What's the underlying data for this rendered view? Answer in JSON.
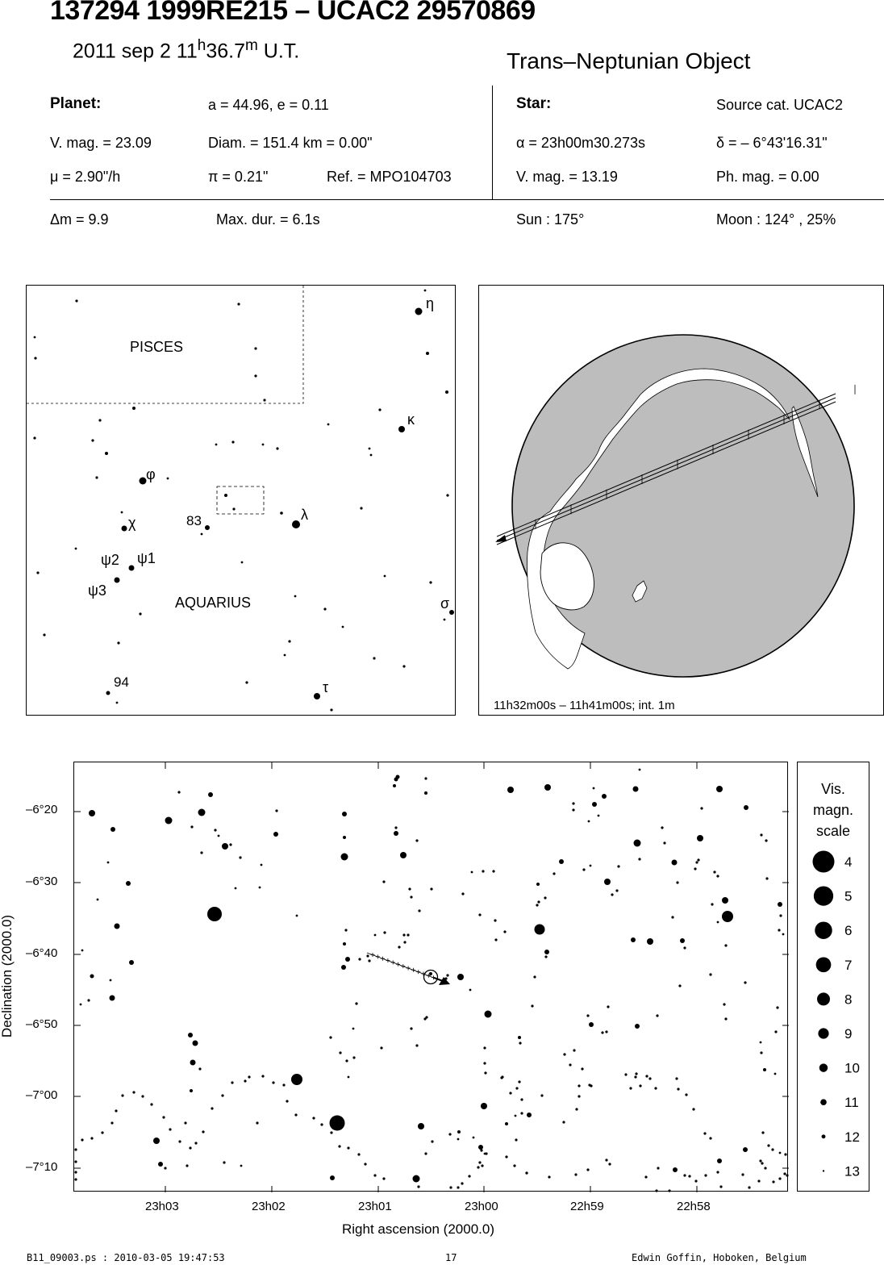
{
  "header": {
    "title": "137294 1999RE215  –  UCAC2 29570869",
    "date": "2011 sep  2  11",
    "time_h": "h",
    "time_min": "36.7",
    "time_m": "m",
    "time_ut": " U.T.",
    "object_type": "Trans–Neptunian Object"
  },
  "planet": {
    "heading": "Planet:",
    "orbit": "a = 44.96, e = 0.11",
    "vmag": "V. mag. = 23.09",
    "diam": "Diam. = 151.4 km = 0.00\"",
    "mu": "μ =  2.90\"/h",
    "pi": "π =  0.21\"",
    "ref": "Ref. = MPO104703"
  },
  "star": {
    "heading": "Star:",
    "source": "Source cat.  UCAC2",
    "ra": "α = 23h00m30.273s",
    "dec": "δ = – 6°43'16.31\"",
    "vmag": "V. mag. = 13.19",
    "phmag": "Ph. mag. =  0.00"
  },
  "circumstances": {
    "dm": "Δm = 9.9",
    "maxdur": "Max. dur. = 6.1s",
    "sun": "Sun : 175°",
    "moon": "Moon : 124° , 25%"
  },
  "constellation_map": {
    "names": [
      "PISCES",
      "AQUARIUS"
    ],
    "star_labels": [
      "η",
      "κ",
      "φ",
      "χ",
      "83",
      "λ",
      "ψ2",
      "ψ1",
      "ψ3",
      "σ",
      "94",
      "τ"
    ]
  },
  "globe": {
    "caption": "11h32m00s – 11h41m00s; int.  1m"
  },
  "star_chart": {
    "ylabel": "Declination (2000.0)",
    "xlabel": "Right ascension (2000.0)",
    "yticks": [
      "–6°20",
      "–6°30",
      "–6°40",
      "–6°50",
      "–7°00",
      "–7°10"
    ],
    "xticks": [
      "23h03",
      "23h02",
      "23h01",
      "23h00",
      "22h59",
      "22h58"
    ]
  },
  "magnitude_scale": {
    "title": [
      "Vis.",
      "magn.",
      "scale"
    ],
    "mags": [
      "4",
      "5",
      "6",
      "7",
      "8",
      "9",
      "10",
      "11",
      "12",
      "13"
    ]
  },
  "footer": {
    "file": "B11_09003.ps : 2010-03-05 19:47:53",
    "page": "17",
    "author": "Edwin Goffin, Hoboken, Belgium"
  }
}
